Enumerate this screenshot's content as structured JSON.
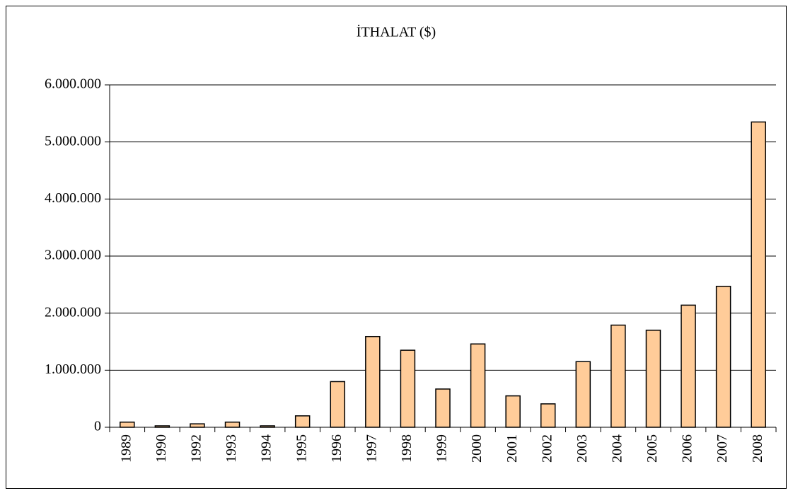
{
  "chart_data": {
    "type": "bar",
    "title": "İTHALAT ($)",
    "categories": [
      "1989",
      "1990",
      "1992",
      "1993",
      "1994",
      "1995",
      "1996",
      "1997",
      "1998",
      "1999",
      "2000",
      "2001",
      "2002",
      "2003",
      "2004",
      "2005",
      "2006",
      "2007",
      "2008"
    ],
    "values": [
      90000,
      25000,
      60000,
      90000,
      25000,
      200000,
      800000,
      1590000,
      1350000,
      670000,
      1460000,
      550000,
      410000,
      1150000,
      1790000,
      1700000,
      2140000,
      2470000,
      5350000
    ],
    "color": "#ffcc99",
    "ylim": [
      0,
      6000000
    ],
    "yticks": [
      0,
      {
        "value": 1000000,
        "label": "1.000.000"
      },
      {
        "value": 2000000,
        "label": "2.000.000"
      },
      {
        "value": 3000000,
        "label": "3.000.000"
      },
      {
        "value": 4000000,
        "label": "4.000.000"
      },
      {
        "value": 5000000,
        "label": "5.000.000"
      },
      {
        "value": 6000000,
        "label": "6.000.000"
      }
    ],
    "grid": true
  }
}
